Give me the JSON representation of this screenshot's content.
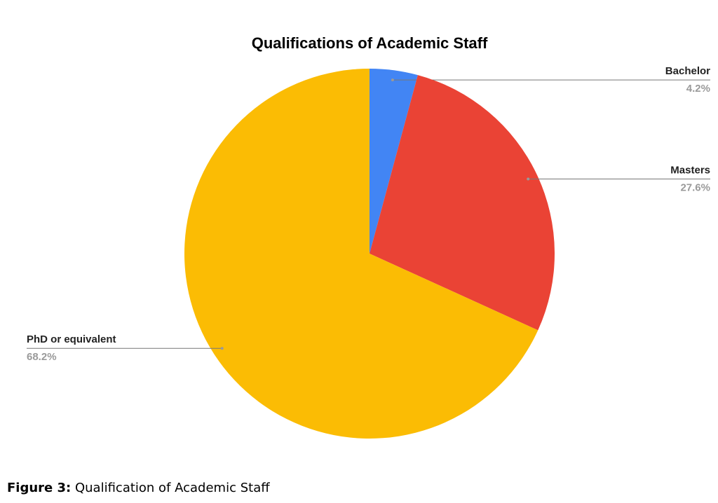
{
  "chart_data": {
    "type": "pie",
    "title": "Qualifications of Academic Staff",
    "categories": [
      "Bachelor",
      "Masters",
      "PhD or equivalent"
    ],
    "values": [
      4.2,
      27.6,
      68.2
    ],
    "value_labels": [
      "4.2%",
      "27.6%",
      "68.2%"
    ],
    "colors": [
      "#4285f4",
      "#ea4335",
      "#fbbc04"
    ]
  },
  "caption": {
    "label": "Figure 3:",
    "text": "Qualification of Academic Staff"
  }
}
